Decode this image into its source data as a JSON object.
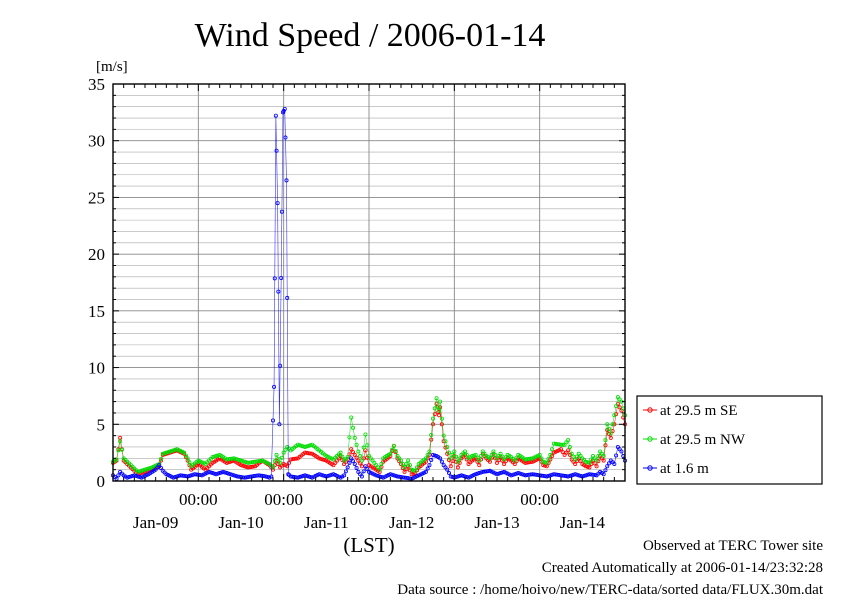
{
  "chart_data": {
    "type": "line",
    "title": "Wind Speed / 2006-01-14",
    "ylabel": "[m/s]",
    "xlabel": "(LST)",
    "ylim": [
      0,
      35
    ],
    "y_major_ticks": [
      0,
      5,
      10,
      15,
      20,
      25,
      30,
      35
    ],
    "y_minor_step": 1,
    "grid": true,
    "x_unit": "hours since start of Jan-08 (LST)",
    "xlim": [
      0,
      144
    ],
    "x_tick_hours": [
      24,
      48,
      72,
      96,
      120
    ],
    "x_tick_label": "00:00",
    "x_day_labels": [
      {
        "label": "Jan-09",
        "hour": 12
      },
      {
        "label": "Jan-10",
        "hour": 36
      },
      {
        "label": "Jan-11",
        "hour": 60
      },
      {
        "label": "Jan-12",
        "hour": 84
      },
      {
        "label": "Jan-13",
        "hour": 108
      },
      {
        "label": "Jan-14",
        "hour": 132
      }
    ],
    "legend_position": "right",
    "series": [
      {
        "name": "at 29.5 m SE",
        "color": "#ff0000",
        "keypoints": [
          [
            0,
            1.6
          ],
          [
            1,
            1.8
          ],
          [
            2,
            3.8
          ],
          [
            3,
            1.8
          ],
          [
            5,
            1.2
          ],
          [
            7,
            0.6
          ],
          [
            9,
            0.8
          ],
          [
            11,
            1.0
          ],
          [
            13,
            1.3
          ],
          [
            14,
            2.3
          ],
          [
            16,
            2.5
          ],
          [
            18,
            2.7
          ],
          [
            20,
            2.4
          ],
          [
            21,
            1.8
          ],
          [
            22,
            1.0
          ],
          [
            24,
            1.5
          ],
          [
            26,
            1.0
          ],
          [
            28,
            1.6
          ],
          [
            30,
            2.0
          ],
          [
            32,
            1.6
          ],
          [
            34,
            1.8
          ],
          [
            36,
            1.4
          ],
          [
            38,
            1.2
          ],
          [
            40,
            1.3
          ],
          [
            42,
            1.8
          ],
          [
            44,
            1.4
          ],
          [
            45,
            1.0
          ],
          [
            46,
            1.8
          ],
          [
            47,
            1.2
          ],
          [
            48,
            1.5
          ],
          [
            49,
            1.3
          ],
          [
            50,
            1.9
          ],
          [
            52,
            2.0
          ],
          [
            54,
            2.5
          ],
          [
            56,
            2.4
          ],
          [
            58,
            2.0
          ],
          [
            60,
            1.8
          ],
          [
            62,
            1.4
          ],
          [
            64,
            2.2
          ],
          [
            65,
            1.5
          ],
          [
            66,
            1.9
          ],
          [
            67,
            2.8
          ],
          [
            69,
            1.8
          ],
          [
            70,
            1.3
          ],
          [
            71,
            2.7
          ],
          [
            72,
            1.4
          ],
          [
            74,
            1.0
          ],
          [
            75,
            0.8
          ],
          [
            76,
            1.7
          ],
          [
            78,
            2.2
          ],
          [
            79,
            3.1
          ],
          [
            80,
            2.0
          ],
          [
            81,
            1.5
          ],
          [
            82,
            0.8
          ],
          [
            83,
            1.3
          ],
          [
            84,
            0.6
          ],
          [
            85,
            0.7
          ],
          [
            86,
            1.2
          ],
          [
            88,
            1.7
          ],
          [
            89,
            2.3
          ],
          [
            90,
            5.0
          ],
          [
            91,
            6.8
          ],
          [
            91.7,
            5.8
          ],
          [
            92,
            6.5
          ],
          [
            93,
            3.5
          ],
          [
            94,
            2.4
          ],
          [
            95,
            1.3
          ],
          [
            96,
            2.2
          ],
          [
            97,
            1.2
          ],
          [
            98,
            2.0
          ],
          [
            99,
            2.3
          ],
          [
            100,
            1.5
          ],
          [
            101,
            1.8
          ],
          [
            102,
            2.0
          ],
          [
            103,
            1.4
          ],
          [
            104,
            2.4
          ],
          [
            105,
            2.0
          ],
          [
            106,
            1.7
          ],
          [
            107,
            2.4
          ],
          [
            108,
            1.6
          ],
          [
            109,
            2.1
          ],
          [
            110,
            1.5
          ],
          [
            111,
            2.0
          ],
          [
            112,
            1.8
          ],
          [
            113,
            1.5
          ],
          [
            114,
            2.0
          ],
          [
            116,
            1.6
          ],
          [
            118,
            1.7
          ],
          [
            120,
            2.0
          ],
          [
            121,
            1.4
          ],
          [
            122,
            1.3
          ],
          [
            123,
            1.9
          ],
          [
            124,
            2.5
          ],
          [
            126,
            2.8
          ],
          [
            127,
            2.3
          ],
          [
            128,
            2.7
          ],
          [
            129,
            1.9
          ],
          [
            130,
            1.5
          ],
          [
            131,
            2.0
          ],
          [
            132,
            1.5
          ],
          [
            133,
            1.3
          ],
          [
            134,
            1.2
          ],
          [
            135,
            1.8
          ],
          [
            136,
            1.3
          ],
          [
            137,
            2.2
          ],
          [
            138,
            1.8
          ],
          [
            139,
            4.5
          ],
          [
            140,
            3.8
          ],
          [
            141,
            5.0
          ],
          [
            142,
            6.8
          ],
          [
            143,
            6.2
          ],
          [
            144,
            5.0
          ]
        ]
      },
      {
        "name": "at 29.5 m NW",
        "color": "#00dd00",
        "keypoints": [
          [
            0,
            1.7
          ],
          [
            1,
            1.9
          ],
          [
            2,
            3.5
          ],
          [
            3,
            2.0
          ],
          [
            5,
            1.4
          ],
          [
            7,
            0.8
          ],
          [
            9,
            1.0
          ],
          [
            11,
            1.2
          ],
          [
            13,
            1.5
          ],
          [
            14,
            2.4
          ],
          [
            16,
            2.6
          ],
          [
            18,
            2.8
          ],
          [
            20,
            2.5
          ],
          [
            21,
            2.0
          ],
          [
            22,
            1.3
          ],
          [
            24,
            1.8
          ],
          [
            26,
            1.5
          ],
          [
            28,
            2.1
          ],
          [
            30,
            2.3
          ],
          [
            32,
            1.9
          ],
          [
            34,
            2.0
          ],
          [
            36,
            1.8
          ],
          [
            38,
            1.6
          ],
          [
            40,
            1.7
          ],
          [
            42,
            1.8
          ],
          [
            44,
            1.5
          ],
          [
            45,
            1.2
          ],
          [
            46,
            2.3
          ],
          [
            47,
            1.6
          ],
          [
            48,
            2.5
          ],
          [
            49,
            3.0
          ],
          [
            50,
            2.7
          ],
          [
            52,
            3.2
          ],
          [
            54,
            3.0
          ],
          [
            56,
            3.2
          ],
          [
            58,
            2.7
          ],
          [
            60,
            2.2
          ],
          [
            62,
            1.9
          ],
          [
            64,
            2.5
          ],
          [
            65,
            1.8
          ],
          [
            66,
            2.1
          ],
          [
            67,
            5.6
          ],
          [
            68,
            3.8
          ],
          [
            69,
            2.6
          ],
          [
            70,
            1.8
          ],
          [
            71,
            4.1
          ],
          [
            72,
            2.2
          ],
          [
            74,
            1.4
          ],
          [
            75,
            1.0
          ],
          [
            76,
            2.0
          ],
          [
            78,
            2.4
          ],
          [
            79,
            3.1
          ],
          [
            80,
            2.2
          ],
          [
            81,
            1.8
          ],
          [
            82,
            1.2
          ],
          [
            83,
            1.8
          ],
          [
            84,
            1.0
          ],
          [
            85,
            0.9
          ],
          [
            86,
            1.5
          ],
          [
            88,
            2.0
          ],
          [
            89,
            2.6
          ],
          [
            90,
            5.5
          ],
          [
            91,
            7.3
          ],
          [
            91.7,
            6.2
          ],
          [
            92,
            7.0
          ],
          [
            93,
            4.0
          ],
          [
            94,
            3.0
          ],
          [
            95,
            2.0
          ],
          [
            96,
            2.6
          ],
          [
            97,
            1.7
          ],
          [
            98,
            2.3
          ],
          [
            99,
            2.6
          ],
          [
            100,
            2.0
          ],
          [
            101,
            2.2
          ],
          [
            102,
            2.3
          ],
          [
            103,
            1.8
          ],
          [
            104,
            2.6
          ],
          [
            105,
            2.2
          ],
          [
            106,
            2.0
          ],
          [
            107,
            2.6
          ],
          [
            108,
            2.0
          ],
          [
            109,
            2.4
          ],
          [
            110,
            1.9
          ],
          [
            111,
            2.3
          ],
          [
            112,
            2.1
          ],
          [
            113,
            1.8
          ],
          [
            114,
            2.3
          ],
          [
            116,
            1.9
          ],
          [
            118,
            2.0
          ],
          [
            120,
            2.3
          ],
          [
            121,
            1.7
          ],
          [
            122,
            1.6
          ],
          [
            123,
            2.3
          ],
          [
            124,
            3.3
          ],
          [
            126,
            3.2
          ],
          [
            127,
            3.2
          ],
          [
            128,
            3.6
          ],
          [
            129,
            2.4
          ],
          [
            130,
            1.9
          ],
          [
            131,
            2.4
          ],
          [
            132,
            2.0
          ],
          [
            133,
            1.7
          ],
          [
            134,
            1.6
          ],
          [
            135,
            2.2
          ],
          [
            136,
            1.8
          ],
          [
            137,
            2.6
          ],
          [
            138,
            2.2
          ],
          [
            139,
            5.0
          ],
          [
            140,
            4.2
          ],
          [
            141,
            5.8
          ],
          [
            142,
            7.4
          ],
          [
            143,
            7.0
          ],
          [
            144,
            5.8
          ]
        ]
      },
      {
        "name": "at 1.6 m",
        "color": "#0000ff",
        "keypoints": [
          [
            0,
            0.5
          ],
          [
            1,
            0.2
          ],
          [
            2,
            0.8
          ],
          [
            3,
            0.5
          ],
          [
            4,
            0.3
          ],
          [
            6,
            0.5
          ],
          [
            8,
            0.3
          ],
          [
            10,
            0.6
          ],
          [
            12,
            1.0
          ],
          [
            13,
            1.4
          ],
          [
            14,
            0.9
          ],
          [
            15,
            0.6
          ],
          [
            17,
            0.3
          ],
          [
            19,
            0.5
          ],
          [
            21,
            0.4
          ],
          [
            23,
            0.6
          ],
          [
            25,
            0.5
          ],
          [
            27,
            0.8
          ],
          [
            29,
            0.6
          ],
          [
            31,
            0.8
          ],
          [
            33,
            0.6
          ],
          [
            35,
            0.4
          ],
          [
            37,
            0.3
          ],
          [
            39,
            0.4
          ],
          [
            41,
            0.5
          ],
          [
            43,
            0.4
          ],
          [
            44,
            0.3
          ],
          [
            44.5,
            0.4
          ],
          [
            45.3,
            8.3
          ],
          [
            45.8,
            32.2
          ],
          [
            46.3,
            24.5
          ],
          [
            46.8,
            5.0
          ],
          [
            47.3,
            17.9
          ],
          [
            47.8,
            32.5
          ],
          [
            48.3,
            32.8
          ],
          [
            48.8,
            26.5
          ],
          [
            49.3,
            0.6
          ],
          [
            50,
            0.4
          ],
          [
            52,
            0.3
          ],
          [
            54,
            0.5
          ],
          [
            56,
            0.3
          ],
          [
            58,
            0.6
          ],
          [
            60,
            0.4
          ],
          [
            62,
            0.6
          ],
          [
            64,
            0.3
          ],
          [
            65,
            0.5
          ],
          [
            66,
            1.2
          ],
          [
            67,
            2.0
          ],
          [
            68,
            1.5
          ],
          [
            69,
            0.8
          ],
          [
            70,
            0.4
          ],
          [
            71,
            1.3
          ],
          [
            72,
            0.8
          ],
          [
            74,
            0.5
          ],
          [
            76,
            0.3
          ],
          [
            78,
            0.6
          ],
          [
            80,
            0.4
          ],
          [
            82,
            0.3
          ],
          [
            84,
            0.2
          ],
          [
            86,
            0.5
          ],
          [
            88,
            0.8
          ],
          [
            89,
            1.4
          ],
          [
            90,
            2.3
          ],
          [
            91,
            2.2
          ],
          [
            92,
            2.0
          ],
          [
            93,
            1.4
          ],
          [
            94,
            1.0
          ],
          [
            95,
            0.4
          ],
          [
            96,
            0.3
          ],
          [
            98,
            0.5
          ],
          [
            100,
            0.3
          ],
          [
            102,
            0.6
          ],
          [
            104,
            0.8
          ],
          [
            106,
            0.9
          ],
          [
            108,
            0.6
          ],
          [
            110,
            0.8
          ],
          [
            112,
            0.5
          ],
          [
            114,
            0.7
          ],
          [
            116,
            0.5
          ],
          [
            118,
            0.6
          ],
          [
            120,
            0.5
          ],
          [
            122,
            0.4
          ],
          [
            124,
            0.6
          ],
          [
            126,
            0.5
          ],
          [
            128,
            0.4
          ],
          [
            130,
            0.6
          ],
          [
            132,
            0.4
          ],
          [
            134,
            0.6
          ],
          [
            136,
            0.5
          ],
          [
            137,
            0.8
          ],
          [
            138,
            0.6
          ],
          [
            139,
            1.3
          ],
          [
            140,
            1.8
          ],
          [
            141,
            1.5
          ],
          [
            142,
            3.0
          ],
          [
            143,
            2.6
          ],
          [
            144,
            1.8
          ]
        ]
      }
    ]
  },
  "footer": {
    "line1": "Observed at TERC Tower site",
    "line2": "Created Automatically at 2006-01-14/23:32:28",
    "line3": "Data source : /home/hoivo/new/TERC-data/sorted  data/FLUX.30m.dat"
  }
}
